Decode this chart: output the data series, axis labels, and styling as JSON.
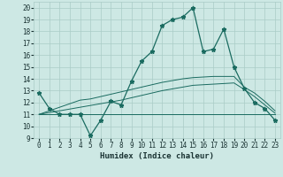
{
  "title": "",
  "xlabel": "Humidex (Indice chaleur)",
  "bg_color": "#cde8e4",
  "grid_color": "#aaccc7",
  "line_color": "#1a6b60",
  "xlim": [
    -0.5,
    23.5
  ],
  "ylim": [
    9,
    20.5
  ],
  "xticks": [
    0,
    1,
    2,
    3,
    4,
    5,
    6,
    7,
    8,
    9,
    10,
    11,
    12,
    13,
    14,
    15,
    16,
    17,
    18,
    19,
    20,
    21,
    22,
    23
  ],
  "yticks": [
    9,
    10,
    11,
    12,
    13,
    14,
    15,
    16,
    17,
    18,
    19,
    20
  ],
  "main_line": [
    12.8,
    11.5,
    11.0,
    11.0,
    11.0,
    9.2,
    10.5,
    12.1,
    11.8,
    13.8,
    15.5,
    16.3,
    18.5,
    19.0,
    19.2,
    20.0,
    16.3,
    16.5,
    18.2,
    15.0,
    13.2,
    12.0,
    11.5,
    10.5
  ],
  "line_flat": [
    11.0,
    11.0,
    11.0,
    11.0,
    11.0,
    11.0,
    11.0,
    11.0,
    11.0,
    11.0,
    11.0,
    11.0,
    11.0,
    11.0,
    11.0,
    11.0,
    11.0,
    11.0,
    11.0,
    11.0,
    11.0,
    11.0,
    11.0,
    11.0
  ],
  "line_slope1": [
    11.0,
    11.15,
    11.3,
    11.45,
    11.6,
    11.75,
    11.9,
    12.05,
    12.2,
    12.4,
    12.6,
    12.8,
    13.0,
    13.15,
    13.3,
    13.45,
    13.5,
    13.55,
    13.6,
    13.65,
    13.1,
    12.5,
    11.8,
    11.1
  ],
  "line_slope2": [
    11.0,
    11.3,
    11.6,
    11.9,
    12.2,
    12.3,
    12.5,
    12.7,
    12.9,
    13.1,
    13.3,
    13.5,
    13.7,
    13.85,
    14.0,
    14.1,
    14.15,
    14.2,
    14.2,
    14.2,
    13.3,
    12.8,
    12.1,
    11.3
  ]
}
